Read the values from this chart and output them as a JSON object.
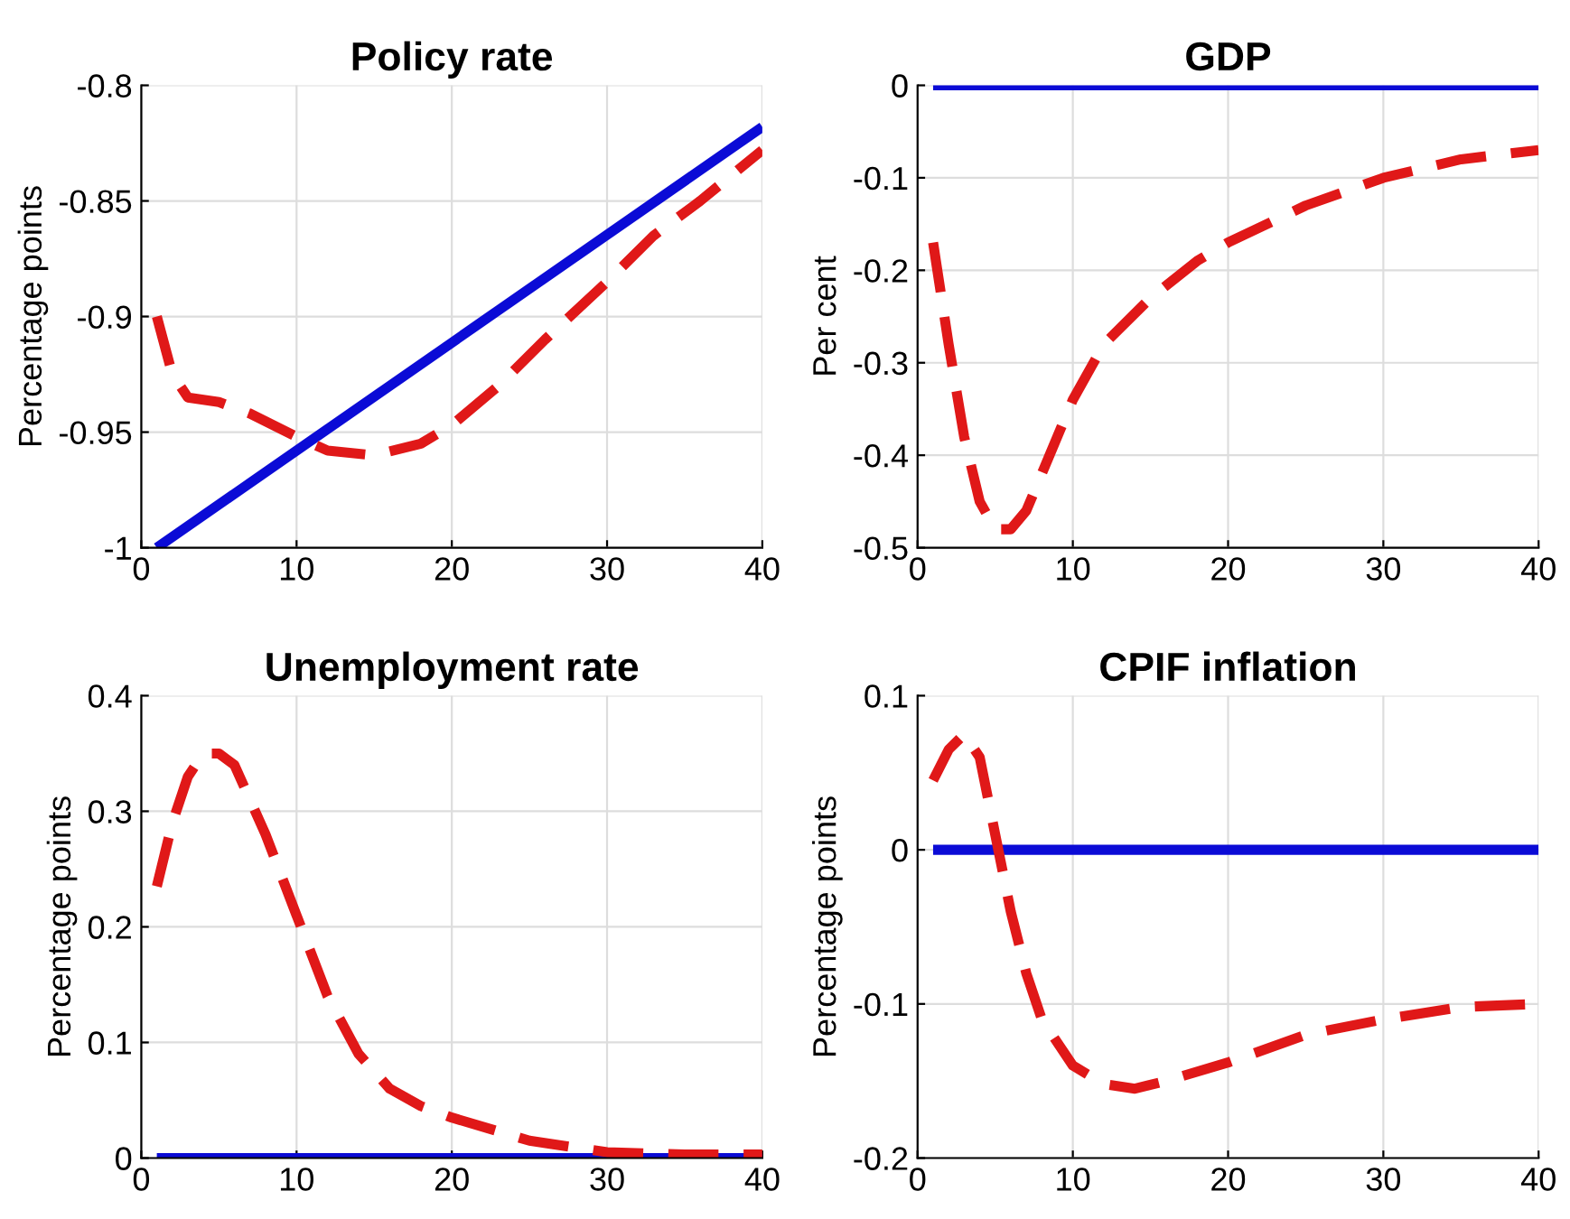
{
  "chart_data": [
    {
      "type": "line",
      "title": "Policy rate",
      "ylabel": "Percentage points",
      "xlim": [
        0,
        40
      ],
      "xticks": [
        0,
        10,
        20,
        30,
        40
      ],
      "ylim": [
        -1,
        -0.8
      ],
      "yticks": [
        -1,
        -0.95,
        -0.9,
        -0.85,
        -0.8
      ],
      "grid": true,
      "series": [
        {
          "color": "#0b0bd6",
          "line_style": "solid",
          "x": [
            1,
            40
          ],
          "values": [
            -1,
            -0.818
          ]
        },
        {
          "color": "#e01818",
          "line_style": "dashed",
          "x": [
            1,
            2,
            3,
            5,
            7,
            10,
            12,
            15,
            18,
            20,
            23,
            26,
            30,
            33,
            36,
            40
          ],
          "values": [
            -0.9,
            -0.925,
            -0.935,
            -0.937,
            -0.942,
            -0.952,
            -0.958,
            -0.96,
            -0.955,
            -0.947,
            -0.93,
            -0.91,
            -0.885,
            -0.865,
            -0.85,
            -0.828
          ]
        }
      ]
    },
    {
      "type": "line",
      "title": "GDP",
      "ylabel": "Per cent",
      "xlim": [
        0,
        40
      ],
      "xticks": [
        0,
        10,
        20,
        30,
        40
      ],
      "ylim": [
        -0.5,
        0
      ],
      "yticks": [
        -0.5,
        -0.4,
        -0.3,
        -0.2,
        -0.1,
        0
      ],
      "grid": true,
      "series": [
        {
          "color": "#0b0bd6",
          "line_style": "solid",
          "x": [
            1,
            40
          ],
          "values": [
            0,
            0
          ]
        },
        {
          "color": "#e01818",
          "line_style": "dashed",
          "x": [
            1,
            2,
            3,
            4,
            5,
            6,
            7,
            8,
            10,
            12,
            15,
            18,
            20,
            25,
            30,
            35,
            40
          ],
          "values": [
            -0.17,
            -0.28,
            -0.38,
            -0.45,
            -0.48,
            -0.48,
            -0.46,
            -0.42,
            -0.34,
            -0.28,
            -0.23,
            -0.19,
            -0.17,
            -0.13,
            -0.1,
            -0.08,
            -0.07
          ]
        }
      ]
    },
    {
      "type": "line",
      "title": "Unemployment rate",
      "ylabel": "Percentage points",
      "xlim": [
        0,
        40
      ],
      "xticks": [
        0,
        10,
        20,
        30,
        40
      ],
      "ylim": [
        0,
        0.4
      ],
      "yticks": [
        0,
        0.1,
        0.2,
        0.3,
        0.4
      ],
      "grid": true,
      "series": [
        {
          "color": "#0b0bd6",
          "line_style": "solid",
          "x": [
            1,
            40
          ],
          "values": [
            0,
            0
          ]
        },
        {
          "color": "#e01818",
          "line_style": "dashed",
          "x": [
            1,
            2,
            3,
            4,
            5,
            6,
            7,
            8,
            10,
            12,
            14,
            16,
            18,
            20,
            25,
            30,
            35,
            40
          ],
          "values": [
            0.235,
            0.29,
            0.33,
            0.35,
            0.35,
            0.34,
            0.31,
            0.28,
            0.21,
            0.14,
            0.09,
            0.06,
            0.045,
            0.035,
            0.015,
            0.005,
            0.003,
            0.003
          ]
        }
      ]
    },
    {
      "type": "line",
      "title": "CPIF inflation",
      "ylabel": "Percentage points",
      "xlim": [
        0,
        40
      ],
      "xticks": [
        0,
        10,
        20,
        30,
        40
      ],
      "ylim": [
        -0.2,
        0.1
      ],
      "yticks": [
        -0.2,
        -0.1,
        0,
        0.1
      ],
      "grid": true,
      "series": [
        {
          "color": "#0b0bd6",
          "line_style": "solid",
          "x": [
            1,
            40
          ],
          "values": [
            0,
            0
          ]
        },
        {
          "color": "#e01818",
          "line_style": "dashed",
          "x": [
            1,
            2,
            3,
            4,
            5,
            6,
            7,
            8,
            10,
            12,
            14,
            16,
            20,
            25,
            30,
            35,
            40
          ],
          "values": [
            0.045,
            0.065,
            0.075,
            0.06,
            0.01,
            -0.04,
            -0.08,
            -0.11,
            -0.14,
            -0.152,
            -0.155,
            -0.15,
            -0.138,
            -0.12,
            -0.11,
            -0.102,
            -0.1
          ]
        }
      ]
    }
  ]
}
